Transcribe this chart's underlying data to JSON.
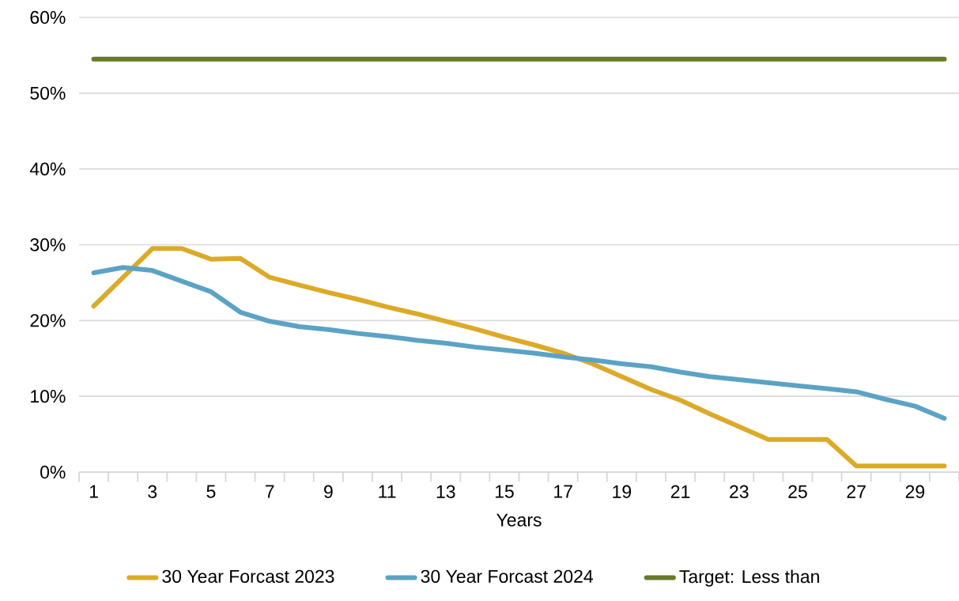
{
  "chart_data": {
    "type": "line",
    "xlabel": "Years",
    "categories": [
      "1",
      null,
      "3",
      null,
      "5",
      null,
      "7",
      null,
      "9",
      null,
      "11",
      null,
      "13",
      null,
      "15",
      null,
      "17",
      null,
      "19",
      null,
      "21",
      null,
      "23",
      null,
      "25",
      null,
      "27",
      null,
      "29",
      null
    ],
    "series": [
      {
        "name": "30 Year Forcast 2023",
        "color": "#dbaa29",
        "values": [
          21.9,
          25.7,
          29.5,
          29.5,
          28.1,
          28.2,
          25.7,
          24.7,
          23.7,
          22.8,
          21.8,
          20.9,
          19.9,
          18.9,
          17.8,
          16.8,
          15.7,
          14.3,
          12.6,
          10.9,
          9.5,
          7.7,
          6.0,
          4.3,
          4.3,
          4.3,
          0.8,
          0.8,
          0.8,
          0.8
        ]
      },
      {
        "name": "30 Year Forcast 2024",
        "color": "#5ba3c4",
        "values": [
          26.3,
          27.0,
          26.6,
          25.2,
          23.8,
          21.1,
          19.9,
          19.2,
          18.8,
          18.3,
          17.9,
          17.4,
          17.0,
          16.5,
          16.1,
          15.7,
          15.2,
          14.8,
          14.3,
          13.9,
          13.2,
          12.6,
          12.2,
          11.8,
          11.4,
          11.0,
          10.6,
          9.6,
          8.7,
          7.1
        ]
      },
      {
        "name": "Target: Less than",
        "color": "#677a2b",
        "values": [
          54.5,
          54.5,
          54.5,
          54.5,
          54.5,
          54.5,
          54.5,
          54.5,
          54.5,
          54.5,
          54.5,
          54.5,
          54.5,
          54.5,
          54.5,
          54.5,
          54.5,
          54.5,
          54.5,
          54.5,
          54.5,
          54.5,
          54.5,
          54.5,
          54.5,
          54.5,
          54.5,
          54.5,
          54.5,
          54.5
        ]
      }
    ],
    "ylim": [
      0,
      60
    ],
    "yticks": [
      {
        "value": 0,
        "label": "0%"
      },
      {
        "value": 10,
        "label": "10%"
      },
      {
        "value": 20,
        "label": "20%"
      },
      {
        "value": 30,
        "label": "30%"
      },
      {
        "value": 40,
        "label": "40%"
      },
      {
        "value": 50,
        "label": "50%"
      },
      {
        "value": 60,
        "label": "60%"
      }
    ],
    "grid": "y",
    "legend": "bottom"
  }
}
